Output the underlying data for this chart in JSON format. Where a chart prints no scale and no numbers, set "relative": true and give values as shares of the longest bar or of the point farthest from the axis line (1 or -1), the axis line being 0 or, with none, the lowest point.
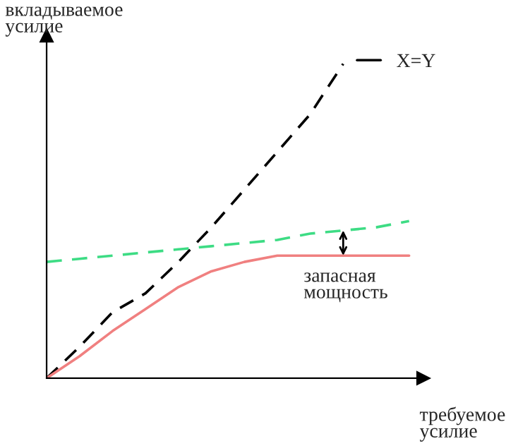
{
  "chart_data": {
    "type": "line",
    "relative": true,
    "xlabel": "требуемое\nусилие",
    "ylabel": "вкладываемое\nусилие",
    "categories": [
      null,
      null,
      null,
      null,
      null,
      null,
      null,
      null,
      null,
      null,
      null,
      null
    ],
    "series": [
      {
        "name": "X=Y",
        "color": "#000000",
        "line_style": "dashed",
        "values": [
          0,
          0.1,
          0.21,
          0.27,
          0.37,
          0.48,
          0.6,
          0.72,
          0.84,
          1.0,
          null,
          null
        ]
      },
      {
        "color": "#3ddc84",
        "line_style": "dashed",
        "values": [
          0.37,
          0.38,
          0.39,
          0.4,
          0.41,
          0.42,
          0.43,
          0.44,
          0.46,
          0.47,
          0.48,
          0.5
        ]
      },
      {
        "color": "#f08080",
        "line_style": "solid",
        "values": [
          0,
          0.07,
          0.15,
          0.22,
          0.29,
          0.34,
          0.37,
          0.39,
          0.39,
          0.39,
          0.39,
          0.39
        ]
      }
    ],
    "annotations": [
      "запасная\nмощность"
    ],
    "legend": "top right",
    "marker": "none"
  }
}
